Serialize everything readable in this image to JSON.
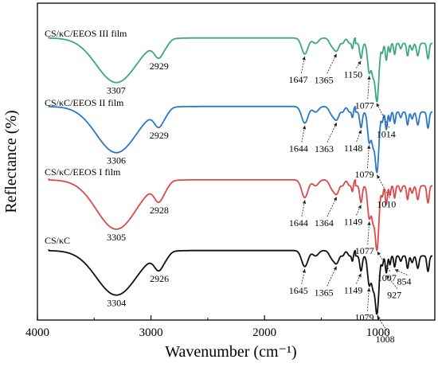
{
  "chart_data": {
    "type": "line",
    "xlabel": "Wavenumber (cm⁻¹)",
    "ylabel": "Reflectance (%)",
    "xlim": [
      4000,
      500
    ],
    "x_reversed": true,
    "xticks": [
      4000,
      3000,
      2000,
      1000
    ],
    "xtick_labels": [
      "4000",
      "3000",
      "2000",
      "1000"
    ],
    "grid": false,
    "series": [
      {
        "name": "CS/κC/EEOS III film",
        "color": "#3aaa7a",
        "level": 3,
        "peaks": [
          {
            "label": "3307",
            "x": 3307
          },
          {
            "label": "2929",
            "x": 2929
          },
          {
            "label": "1647",
            "x": 1647
          },
          {
            "label": "1365",
            "x": 1365
          },
          {
            "label": "1150",
            "x": 1150
          },
          {
            "label": "1077",
            "x": 1077
          },
          {
            "label": "1014",
            "x": 1014
          }
        ]
      },
      {
        "name": "CS/κC/EEOS II film",
        "color": "#2a78c8",
        "level": 2,
        "peaks": [
          {
            "label": "3306",
            "x": 3306
          },
          {
            "label": "2929",
            "x": 2929
          },
          {
            "label": "1644",
            "x": 1644
          },
          {
            "label": "1363",
            "x": 1363
          },
          {
            "label": "1148",
            "x": 1148
          },
          {
            "label": "1079",
            "x": 1079
          },
          {
            "label": "1010",
            "x": 1010
          }
        ]
      },
      {
        "name": "CS/κC/EEOS I film",
        "color": "#e0484a",
        "level": 1,
        "peaks": [
          {
            "label": "3305",
            "x": 3305
          },
          {
            "label": "2928",
            "x": 2928
          },
          {
            "label": "1644",
            "x": 1644
          },
          {
            "label": "1364",
            "x": 1364
          },
          {
            "label": "1149",
            "x": 1149
          },
          {
            "label": "1077",
            "x": 1077
          },
          {
            "label": "1007",
            "x": 1007
          }
        ]
      },
      {
        "name": "CS/κC",
        "color": "#111111",
        "level": 0,
        "peaks": [
          {
            "label": "3304",
            "x": 3304
          },
          {
            "label": "2926",
            "x": 2926
          },
          {
            "label": "1645",
            "x": 1645
          },
          {
            "label": "1365",
            "x": 1365
          },
          {
            "label": "1149",
            "x": 1149
          },
          {
            "label": "1079",
            "x": 1079
          },
          {
            "label": "1008",
            "x": 1008
          },
          {
            "label": "927",
            "x": 927
          },
          {
            "label": "854",
            "x": 854
          }
        ]
      }
    ]
  }
}
